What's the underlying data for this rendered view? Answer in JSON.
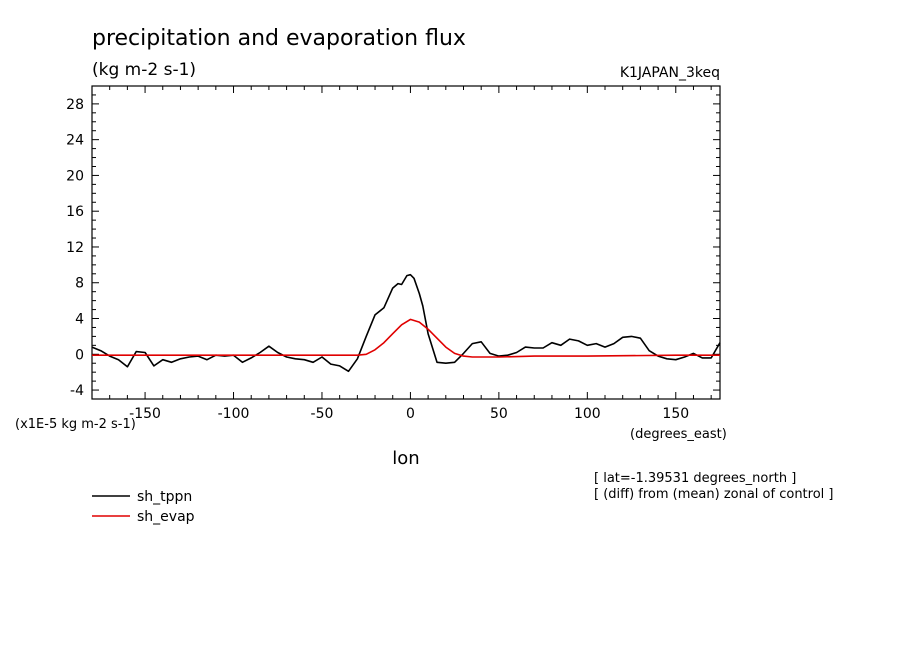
{
  "title": "precipitation and evaporation flux",
  "units": "(kg m-2 s-1)",
  "experiment": "K1JAPAN_3keq",
  "scale_note": "(x1E-5 kg m-2 s-1)",
  "x_units": "(degrees_east)",
  "x_axis_label": "lon",
  "info_lines": [
    "[ lat=-1.39531 degrees_north ]",
    "[ (diff) from (mean) zonal of control ]"
  ],
  "colors": {
    "sh_tppn": "#000000",
    "sh_evap": "#e00000"
  },
  "chart_data": {
    "type": "line",
    "title": "precipitation and evaporation flux",
    "xlabel": "lon",
    "ylabel": "(kg m-2 s-1)",
    "xlim": [
      -180,
      175
    ],
    "ylim": [
      -5,
      30
    ],
    "xticks": [
      -150,
      -100,
      -50,
      0,
      50,
      100,
      150
    ],
    "xtick_labels": [
      "-150",
      "-100",
      "-50",
      "0",
      "50",
      "100",
      "150"
    ],
    "yticks": [
      -4,
      0,
      4,
      8,
      12,
      16,
      20,
      24,
      28
    ],
    "ytick_labels": [
      "-4",
      "0",
      "4",
      "8",
      "12",
      "16",
      "20",
      "24",
      "28"
    ],
    "grid": false,
    "legend_position": "bottom-left",
    "series": [
      {
        "name": "sh_tppn",
        "x": [
          -180,
          -175,
          -170,
          -165,
          -160,
          -155,
          -150,
          -145,
          -140,
          -135,
          -130,
          -125,
          -120,
          -115,
          -110,
          -105,
          -100,
          -95,
          -90,
          -85,
          -80,
          -75,
          -70,
          -65,
          -60,
          -55,
          -50,
          -45,
          -40,
          -35,
          -30,
          -25,
          -20,
          -15,
          -10,
          -7,
          -5,
          -2,
          0,
          2,
          5,
          7,
          10,
          15,
          20,
          25,
          30,
          35,
          40,
          45,
          50,
          55,
          60,
          65,
          70,
          75,
          80,
          85,
          90,
          95,
          100,
          105,
          110,
          115,
          120,
          125,
          130,
          135,
          140,
          145,
          150,
          155,
          160,
          165,
          170,
          175
        ],
        "y": [
          0.8,
          0.4,
          -0.2,
          -0.6,
          -1.4,
          0.3,
          0.2,
          -1.3,
          -0.6,
          -0.9,
          -0.5,
          -0.3,
          -0.2,
          -0.6,
          -0.1,
          -0.2,
          -0.1,
          -0.9,
          -0.4,
          0.2,
          0.9,
          0.2,
          -0.3,
          -0.5,
          -0.6,
          -0.9,
          -0.3,
          -1.1,
          -1.3,
          -1.9,
          -0.5,
          2.0,
          4.4,
          5.2,
          7.4,
          7.9,
          7.8,
          8.8,
          8.9,
          8.5,
          6.8,
          5.4,
          2.3,
          -0.9,
          -1.0,
          -0.9,
          0.1,
          1.2,
          1.4,
          0.1,
          -0.2,
          -0.1,
          0.2,
          0.8,
          0.7,
          0.7,
          1.3,
          1.0,
          1.7,
          1.5,
          1.0,
          1.2,
          0.8,
          1.2,
          1.9,
          2.0,
          1.8,
          0.4,
          -0.2,
          -0.5,
          -0.6,
          -0.3,
          0.1,
          -0.4,
          -0.4,
          1.3
        ]
      },
      {
        "name": "sh_evap",
        "x": [
          -180,
          -150,
          -100,
          -50,
          -35,
          -30,
          -25,
          -20,
          -15,
          -10,
          -5,
          0,
          5,
          10,
          15,
          20,
          25,
          30,
          35,
          40,
          50,
          70,
          100,
          150,
          175
        ],
        "y": [
          -0.1,
          -0.1,
          -0.1,
          -0.1,
          -0.1,
          -0.1,
          0.0,
          0.5,
          1.3,
          2.3,
          3.3,
          3.9,
          3.6,
          2.8,
          1.8,
          0.8,
          0.1,
          -0.2,
          -0.3,
          -0.3,
          -0.3,
          -0.2,
          -0.2,
          -0.1,
          -0.1
        ]
      }
    ]
  }
}
